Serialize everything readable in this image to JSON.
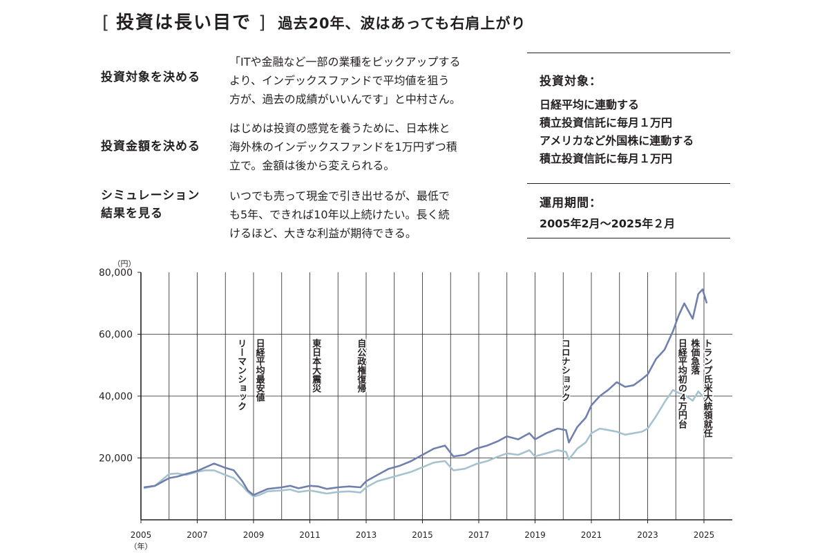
{
  "header": {
    "bracket_open": "[",
    "title": "投資は長い目で",
    "bracket_close": "]",
    "subtitle": "過去20年、波はあっても右肩上がり"
  },
  "steps": [
    {
      "label": "投資対象を決める",
      "text": "「ITや金融など一部の業種をピックアップする\nより、インデックスファンドで平均値を狙う\n方が、過去の成績がいいんです」と中村さん。"
    },
    {
      "label": "投資金額を決める",
      "text": "はじめは投資の感覚を養うために、日本株と\n海外株のインデックスファンドを1万円ずつ積\n立で。金額は後から変えられる。"
    },
    {
      "label_lines": [
        "シミュレーション",
        "結果を見る"
      ],
      "text": "いつでも売って現金で引き出せるが、最低で\nも5年、できれば10年以上続けたい。長く続\nけるほど、大きな利益が期待できる。"
    }
  ],
  "info": {
    "target_heading": "投資対象：",
    "target_lines": [
      "日経平均に連動する",
      "積立投資信託に毎月１万円",
      "アメリカなど外国株に連動する",
      "積立投資信託に毎月１万円"
    ],
    "period_heading": "運用期間：",
    "period_value": "2005年2月〜2025年２月"
  },
  "colors": {
    "line_foreign": "#6f7fae",
    "line_nikkei": "#a5c3cf",
    "text": "#231f20"
  },
  "chart_data": {
    "type": "line",
    "y_unit": "（円）",
    "x_unit": "（年）",
    "ylim": [
      0,
      80000
    ],
    "xlim": [
      2005,
      2025.6
    ],
    "grid": "vertical lines every year, horizontal lines at 20,000 / 40,000 / 60,000",
    "y_ticks": [
      {
        "value": 20000,
        "label": "20,000"
      },
      {
        "value": 40000,
        "label": "40,000"
      },
      {
        "value": 60000,
        "label": "60,000"
      },
      {
        "value": 80000,
        "label": "80,000"
      }
    ],
    "x_ticks": [
      {
        "value": 2005,
        "label": "2005"
      },
      {
        "value": 2007,
        "label": "2007"
      },
      {
        "value": 2009,
        "label": "2009"
      },
      {
        "value": 2011,
        "label": "2011"
      },
      {
        "value": 2013,
        "label": "2013"
      },
      {
        "value": 2015,
        "label": "2015"
      },
      {
        "value": 2017,
        "label": "2017"
      },
      {
        "value": 2019,
        "label": "2019"
      },
      {
        "value": 2021,
        "label": "2021"
      },
      {
        "value": 2023,
        "label": "2023"
      },
      {
        "value": 2025,
        "label": "2025"
      }
    ],
    "series": [
      {
        "key": "foreign",
        "color": "#6f7fae",
        "x": [
          2005.1,
          2005.5,
          2006.0,
          2006.3,
          2006.6,
          2007.0,
          2007.3,
          2007.6,
          2008.0,
          2008.3,
          2008.6,
          2008.8,
          2009.0,
          2009.2,
          2009.5,
          2010.0,
          2010.3,
          2010.6,
          2011.0,
          2011.3,
          2011.6,
          2012.0,
          2012.4,
          2012.8,
          2013.0,
          2013.4,
          2013.8,
          2014.2,
          2014.6,
          2015.0,
          2015.4,
          2015.8,
          2016.1,
          2016.5,
          2016.9,
          2017.3,
          2017.7,
          2018.0,
          2018.4,
          2018.8,
          2019.0,
          2019.4,
          2019.8,
          2020.1,
          2020.2,
          2020.5,
          2020.8,
          2021.0,
          2021.3,
          2021.6,
          2021.9,
          2022.2,
          2022.5,
          2022.8,
          2023.0,
          2023.3,
          2023.6,
          2023.9,
          2024.1,
          2024.3,
          2024.6,
          2024.8,
          2024.95,
          2025.1
        ],
        "y": [
          10500,
          11000,
          13500,
          14000,
          14800,
          15800,
          17000,
          18200,
          16800,
          16000,
          12500,
          9500,
          8000,
          8800,
          10000,
          10500,
          11000,
          10200,
          11000,
          10800,
          10000,
          10500,
          10800,
          10500,
          12500,
          14500,
          16500,
          17500,
          19000,
          21000,
          23000,
          24000,
          20500,
          21000,
          23000,
          24000,
          25500,
          27000,
          26000,
          28000,
          26000,
          28000,
          29500,
          29000,
          25000,
          30000,
          33000,
          37000,
          40000,
          42000,
          44500,
          43000,
          43500,
          45500,
          47000,
          52000,
          55000,
          61000,
          66000,
          70000,
          65000,
          73000,
          74500,
          70000
        ]
      },
      {
        "key": "nikkei",
        "color": "#a5c3cf",
        "x": [
          2005.1,
          2005.5,
          2006.0,
          2006.3,
          2006.6,
          2007.0,
          2007.3,
          2007.6,
          2008.0,
          2008.3,
          2008.6,
          2008.8,
          2009.0,
          2009.2,
          2009.5,
          2010.0,
          2010.3,
          2010.6,
          2011.0,
          2011.3,
          2011.6,
          2012.0,
          2012.4,
          2012.8,
          2013.0,
          2013.4,
          2013.8,
          2014.2,
          2014.6,
          2015.0,
          2015.4,
          2015.8,
          2016.1,
          2016.5,
          2016.9,
          2017.3,
          2017.7,
          2018.0,
          2018.4,
          2018.8,
          2019.0,
          2019.4,
          2019.8,
          2020.1,
          2020.2,
          2020.5,
          2020.8,
          2021.0,
          2021.3,
          2021.6,
          2021.9,
          2022.2,
          2022.5,
          2022.8,
          2023.0,
          2023.3,
          2023.6,
          2023.9,
          2024.1,
          2024.3,
          2024.6,
          2024.8,
          2024.95,
          2025.1
        ],
        "y": [
          10200,
          11000,
          14800,
          15000,
          14500,
          15500,
          16000,
          16000,
          14500,
          13500,
          11000,
          9000,
          7500,
          8000,
          9200,
          9500,
          9800,
          9000,
          9500,
          9000,
          8500,
          9000,
          9200,
          8800,
          10500,
          12500,
          13500,
          14500,
          15500,
          17000,
          18500,
          19000,
          16000,
          16500,
          18000,
          19000,
          20500,
          21500,
          21000,
          22500,
          20500,
          21500,
          22500,
          22000,
          19500,
          23000,
          25000,
          28000,
          29500,
          29000,
          28500,
          27500,
          28000,
          28500,
          29500,
          33500,
          38000,
          42000,
          41000,
          40500,
          38500,
          41500,
          40000,
          39000
        ]
      }
    ],
    "annotations": [
      {
        "x": 2008.55,
        "text": "リーマンショック"
      },
      {
        "x": 2009.2,
        "text": "日経平均最安値"
      },
      {
        "x": 2011.2,
        "text": "東日本大震災"
      },
      {
        "x": 2012.8,
        "text": "自公政権復帰"
      },
      {
        "x": 2020.05,
        "text": "コロナショック"
      },
      {
        "x": 2024.2,
        "text": "日経平均初の４万円台"
      },
      {
        "x": 2024.65,
        "text": "株価急落"
      },
      {
        "x": 2025.1,
        "text": "トランプ氏米大統領就任"
      }
    ]
  }
}
